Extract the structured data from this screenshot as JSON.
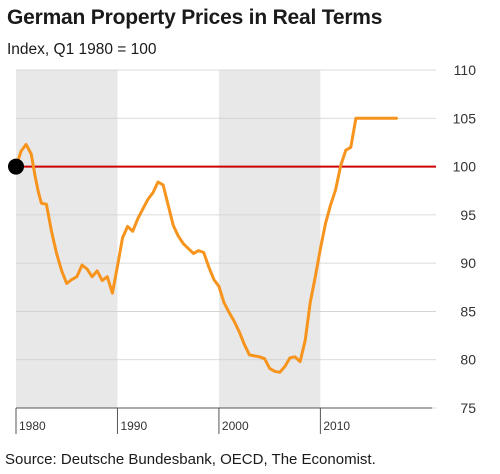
{
  "title": "German Property Prices in Real Terms",
  "subtitle": "Index, Q1 1980 = 100",
  "source": "Source: Deutsche Bundesbank, OECD, The Economist.",
  "chart_data": {
    "type": "line",
    "title": "German Property Prices in Real Terms",
    "ylabel": "Index, Q1 1980 = 100",
    "xlabel": "",
    "ylim": [
      75,
      110
    ],
    "xlim": [
      1980,
      2021
    ],
    "yticks": [
      75,
      80,
      85,
      90,
      95,
      100,
      105,
      110
    ],
    "xtick_labels": [
      {
        "x": 1980,
        "label": "1980"
      },
      {
        "x": 1990,
        "label": "1990"
      },
      {
        "x": 2000,
        "label": "2000"
      },
      {
        "x": 2010,
        "label": "2010"
      }
    ],
    "grid": true,
    "shaded_bands": [
      [
        1980,
        1990
      ],
      [
        2000,
        2010
      ]
    ],
    "reference_line": {
      "y": 100,
      "color": "#cc0000"
    },
    "marker": {
      "x": 1980,
      "y": 100,
      "color": "#000000"
    },
    "series": [
      {
        "color": "#f7941d",
        "x": [
          1980.0,
          1980.5,
          1981.0,
          1981.5,
          1981.9,
          1982.2,
          1982.5,
          1983.0,
          1983.5,
          1984.0,
          1984.5,
          1985.0,
          1985.5,
          1986.0,
          1986.5,
          1987.0,
          1987.5,
          1988.0,
          1988.5,
          1989.0,
          1989.5,
          1990.0,
          1990.5,
          1991.0,
          1991.5,
          1992.0,
          1992.5,
          1993.0,
          1993.5,
          1994.0,
          1994.5,
          1995.0,
          1995.5,
          1996.0,
          1996.5,
          1997.0,
          1997.5,
          1998.0,
          1998.5,
          1999.0,
          1999.5,
          2000.0,
          2000.5,
          2001.0,
          2001.5,
          2002.0,
          2002.5,
          2003.0,
          2003.5,
          2004.0,
          2004.5,
          2005.0,
          2005.5,
          2006.0,
          2006.5,
          2007.0,
          2007.5,
          2008.0,
          2008.5,
          2009.0,
          2009.5,
          2010.0,
          2010.5,
          2011.0,
          2011.5,
          2012.0,
          2012.5,
          2013.0,
          2013.5,
          2014.0,
          2014.5,
          2015.0,
          2015.5,
          2016.0,
          2016.5,
          2017.0,
          2017.5
        ],
        "y": [
          100.0,
          101.6,
          102.3,
          101.3,
          98.9,
          97.4,
          96.2,
          96.1,
          93.3,
          91.0,
          89.2,
          87.9,
          88.3,
          88.6,
          89.8,
          89.4,
          88.6,
          89.2,
          88.2,
          88.6,
          86.9,
          89.7,
          92.6,
          93.8,
          93.3,
          94.6,
          95.6,
          96.6,
          97.3,
          98.4,
          98.1,
          96.0,
          93.9,
          92.8,
          92.0,
          91.5,
          91.0,
          91.3,
          91.1,
          89.6,
          88.3,
          87.6,
          85.9,
          84.9,
          84.0,
          82.9,
          81.6,
          80.5,
          80.4,
          80.3,
          80.1,
          79.1,
          78.8,
          78.7,
          79.3,
          80.2,
          80.3,
          79.8,
          82.0,
          85.9,
          88.6,
          91.5,
          94.1,
          96.0,
          97.6,
          100.1,
          101.7,
          102.0,
          105.0,
          105.0,
          105.0,
          105.0,
          105.0,
          105.0,
          105.0,
          105.0,
          105.0
        ]
      }
    ]
  }
}
